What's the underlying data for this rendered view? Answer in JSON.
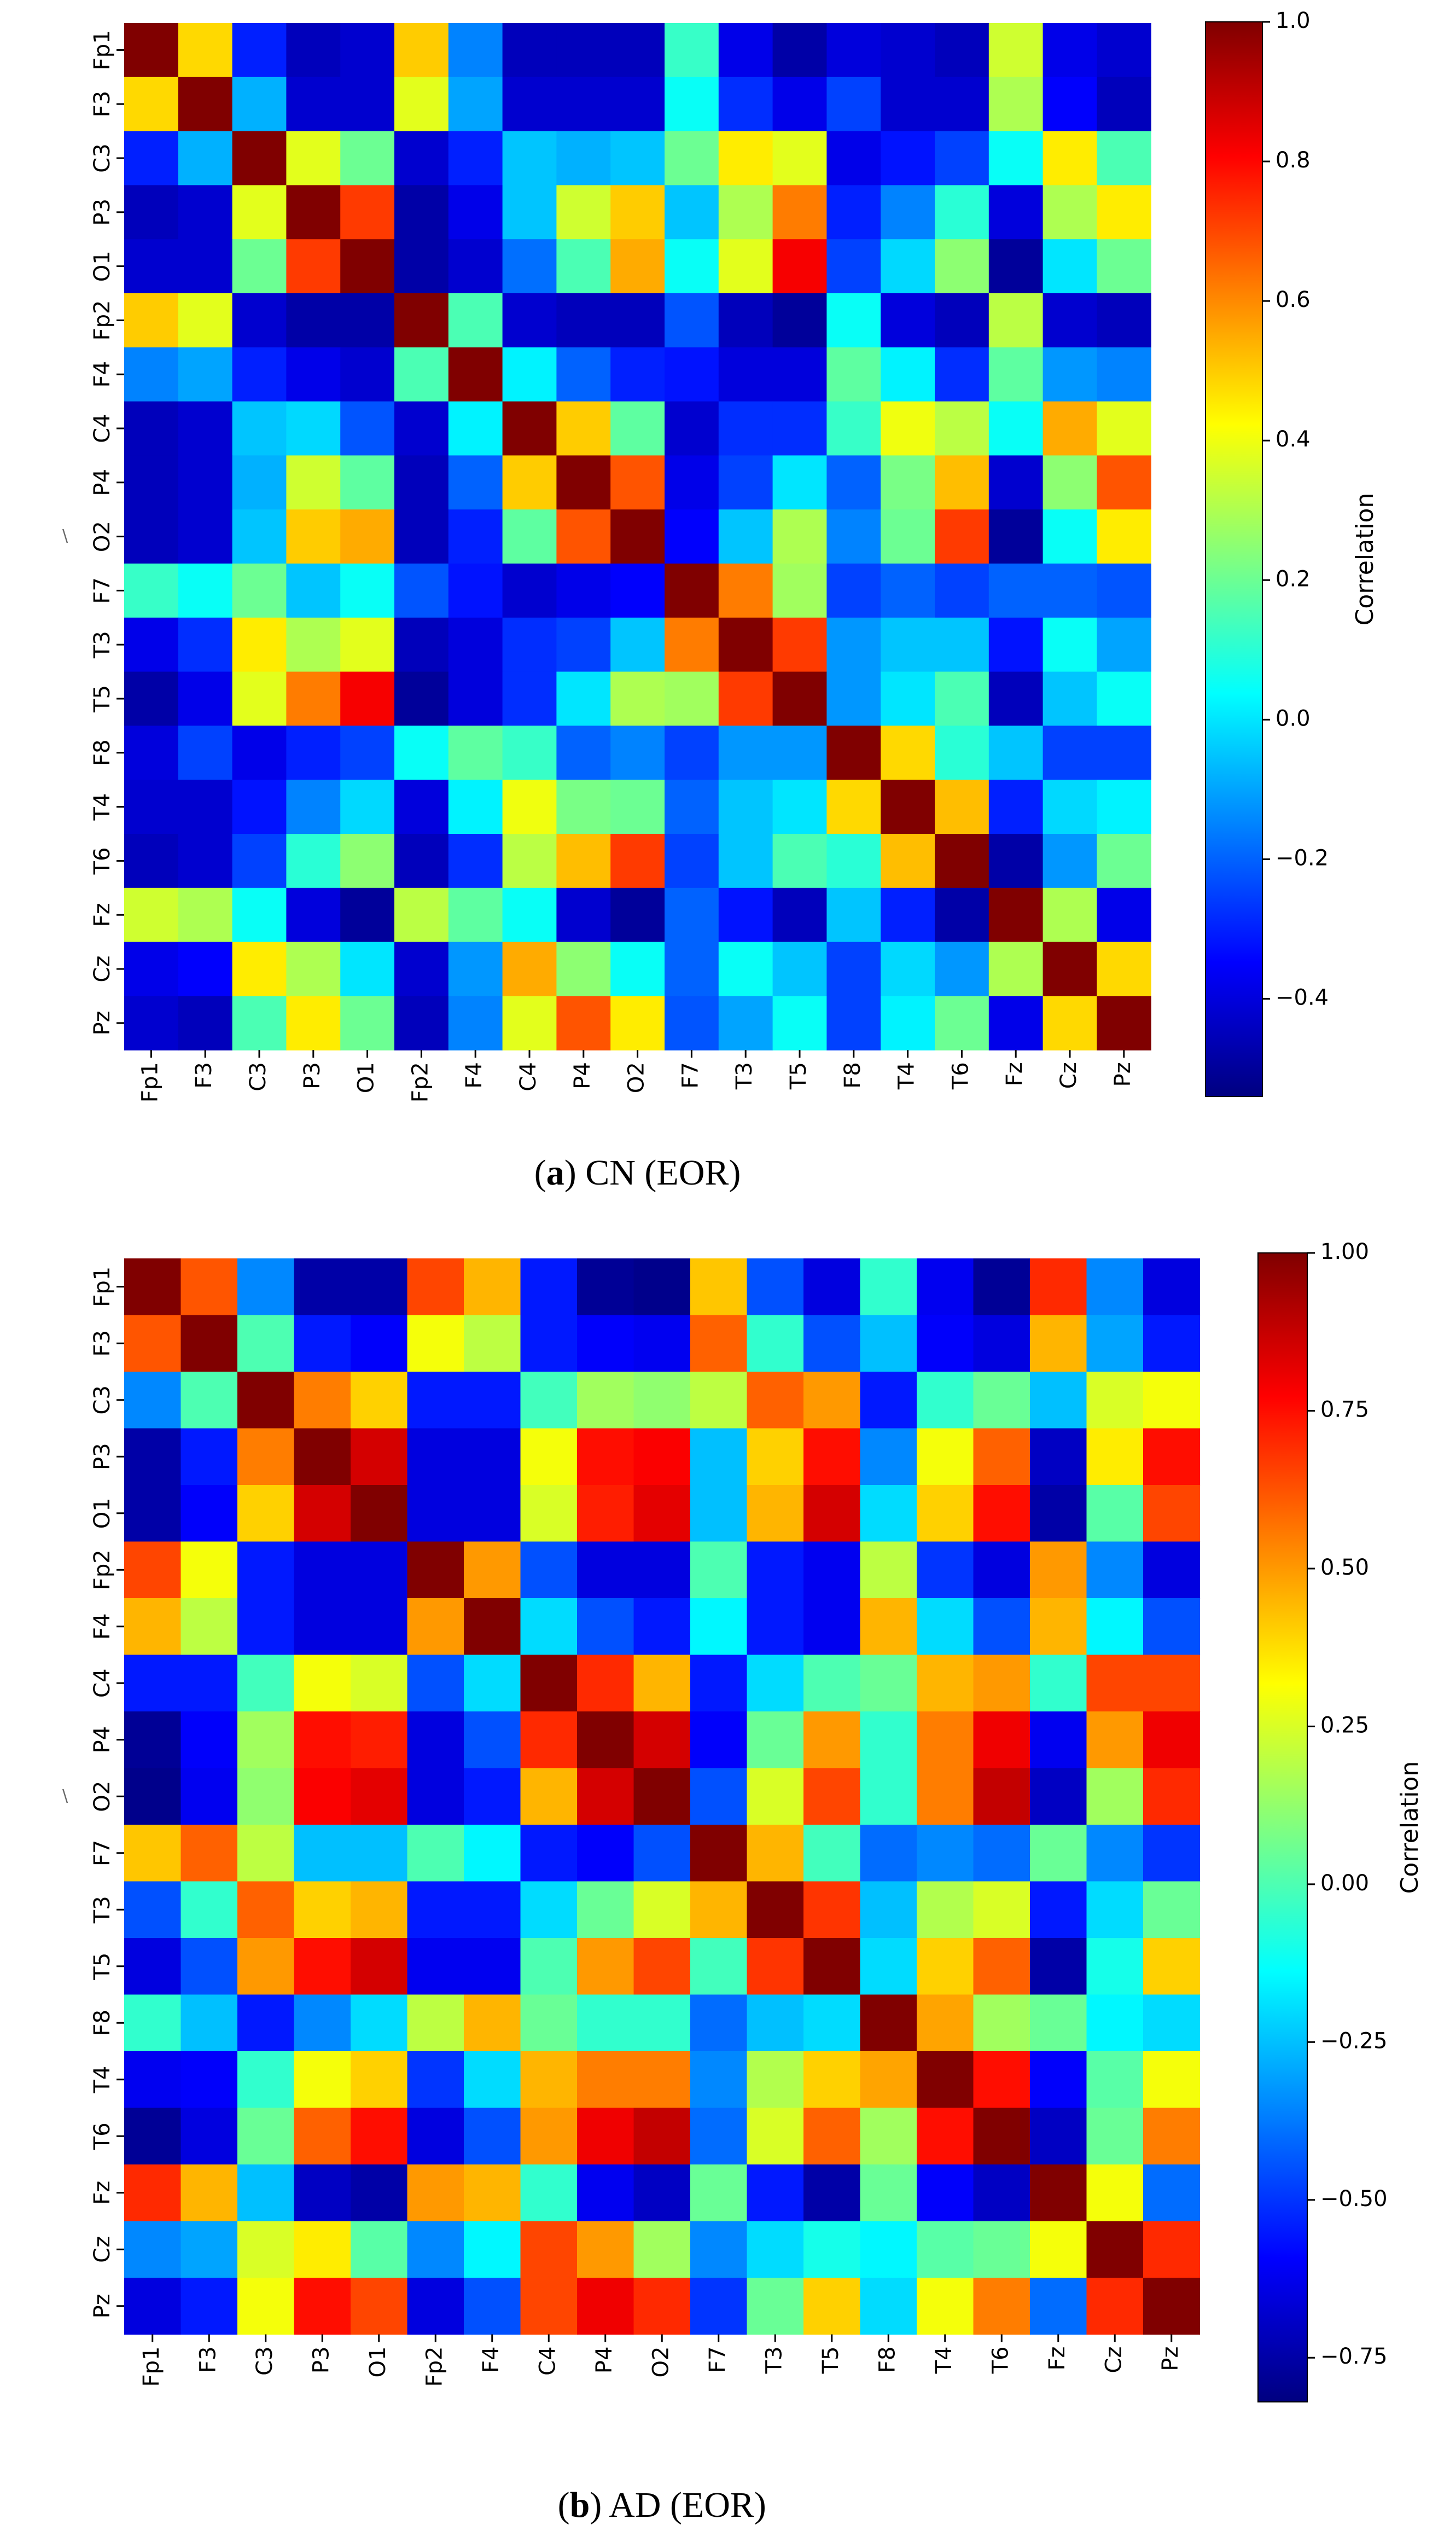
{
  "chart_data": [
    {
      "type": "heatmap",
      "panel": "a",
      "caption_letter": "a",
      "caption_text": " CN (EOR)",
      "labels": [
        "Fp1",
        "F3",
        "C3",
        "P3",
        "O1",
        "Fp2",
        "F4",
        "C4",
        "P4",
        "O2",
        "F7",
        "T3",
        "T5",
        "F8",
        "T4",
        "T6",
        "Fz",
        "Cz",
        "Pz"
      ],
      "colorbar_label": "Correlation",
      "vmin": -0.54,
      "vmax": 1.0,
      "colorbar_ticks": [
        1.0,
        0.8,
        0.6,
        0.4,
        0.2,
        0.0,
        -0.2,
        -0.4
      ],
      "colorbar_tick_labels": [
        "1.0",
        "0.8",
        "0.6",
        "0.4",
        "0.2",
        "0.0",
        "−0.2",
        "−0.4"
      ],
      "colormap": "jet",
      "matrix": [
        [
          1.0,
          0.48,
          -0.3,
          -0.45,
          -0.42,
          0.5,
          -0.15,
          -0.45,
          -0.45,
          -0.45,
          0.12,
          -0.38,
          -0.48,
          -0.4,
          -0.42,
          -0.45,
          0.35,
          -0.38,
          -0.42
        ],
        [
          0.48,
          1.0,
          -0.08,
          -0.42,
          -0.42,
          0.38,
          -0.1,
          -0.42,
          -0.42,
          -0.42,
          0.05,
          -0.28,
          -0.38,
          -0.25,
          -0.42,
          -0.42,
          0.3,
          -0.35,
          -0.45
        ],
        [
          -0.3,
          -0.08,
          1.0,
          0.38,
          0.2,
          -0.42,
          -0.3,
          -0.05,
          -0.08,
          -0.05,
          0.2,
          0.45,
          0.38,
          -0.38,
          -0.32,
          -0.25,
          0.05,
          0.45,
          0.15
        ],
        [
          -0.45,
          -0.42,
          0.38,
          1.0,
          0.72,
          -0.48,
          -0.38,
          -0.05,
          0.35,
          0.5,
          -0.05,
          0.3,
          0.62,
          -0.3,
          -0.15,
          0.1,
          -0.4,
          0.3,
          0.45
        ],
        [
          -0.42,
          -0.42,
          0.2,
          0.72,
          1.0,
          -0.48,
          -0.42,
          -0.18,
          0.15,
          0.55,
          0.05,
          0.38,
          0.82,
          -0.25,
          -0.02,
          0.25,
          -0.5,
          0.0,
          0.2
        ],
        [
          0.5,
          0.38,
          -0.42,
          -0.48,
          -0.48,
          1.0,
          0.15,
          -0.42,
          -0.45,
          -0.45,
          -0.22,
          -0.45,
          -0.5,
          0.05,
          -0.4,
          -0.45,
          0.32,
          -0.42,
          -0.45
        ],
        [
          -0.15,
          -0.1,
          -0.3,
          -0.38,
          -0.42,
          0.15,
          1.0,
          0.02,
          -0.2,
          -0.3,
          -0.32,
          -0.4,
          -0.4,
          0.18,
          0.02,
          -0.28,
          0.18,
          -0.12,
          -0.15
        ],
        [
          -0.45,
          -0.42,
          -0.05,
          -0.02,
          -0.22,
          -0.42,
          0.02,
          1.0,
          0.5,
          0.18,
          -0.42,
          -0.28,
          -0.28,
          0.12,
          0.4,
          0.32,
          0.05,
          0.55,
          0.38
        ],
        [
          -0.45,
          -0.42,
          -0.08,
          0.35,
          0.18,
          -0.45,
          -0.2,
          0.5,
          1.0,
          0.68,
          -0.38,
          -0.25,
          0.0,
          -0.2,
          0.22,
          0.52,
          -0.42,
          0.25,
          0.68
        ],
        [
          -0.45,
          -0.42,
          -0.05,
          0.5,
          0.55,
          -0.45,
          -0.3,
          0.18,
          0.68,
          1.0,
          -0.35,
          -0.05,
          0.3,
          -0.15,
          0.2,
          0.72,
          -0.5,
          0.05,
          0.45
        ],
        [
          0.12,
          0.05,
          0.2,
          -0.05,
          0.05,
          -0.22,
          -0.32,
          -0.42,
          -0.38,
          -0.35,
          1.0,
          0.62,
          0.28,
          -0.25,
          -0.2,
          -0.25,
          -0.2,
          -0.2,
          -0.22
        ],
        [
          -0.38,
          -0.28,
          0.45,
          0.3,
          0.38,
          -0.45,
          -0.4,
          -0.28,
          -0.25,
          -0.05,
          0.62,
          1.0,
          0.72,
          -0.12,
          -0.05,
          -0.05,
          -0.32,
          0.05,
          -0.1
        ],
        [
          -0.48,
          -0.38,
          0.38,
          0.62,
          0.82,
          -0.5,
          -0.4,
          -0.28,
          0.0,
          0.3,
          0.28,
          0.72,
          1.0,
          -0.12,
          0.0,
          0.15,
          -0.45,
          -0.05,
          0.05
        ],
        [
          -0.4,
          -0.25,
          -0.38,
          -0.3,
          -0.25,
          0.05,
          0.18,
          0.12,
          -0.2,
          -0.15,
          -0.25,
          -0.12,
          -0.12,
          1.0,
          0.48,
          0.1,
          -0.05,
          -0.25,
          -0.25
        ],
        [
          -0.42,
          -0.42,
          -0.32,
          -0.15,
          -0.02,
          -0.4,
          0.02,
          0.4,
          0.22,
          0.2,
          -0.2,
          -0.05,
          0.0,
          0.48,
          1.0,
          0.52,
          -0.3,
          -0.02,
          0.02
        ],
        [
          -0.45,
          -0.42,
          -0.25,
          0.1,
          0.25,
          -0.45,
          -0.28,
          0.32,
          0.52,
          0.72,
          -0.25,
          -0.05,
          0.15,
          0.1,
          0.52,
          1.0,
          -0.48,
          -0.12,
          0.2
        ],
        [
          0.35,
          0.3,
          0.05,
          -0.4,
          -0.5,
          0.32,
          0.18,
          0.05,
          -0.42,
          -0.5,
          -0.2,
          -0.32,
          -0.45,
          -0.05,
          -0.3,
          -0.48,
          1.0,
          0.3,
          -0.38
        ],
        [
          -0.38,
          -0.35,
          0.45,
          0.3,
          0.0,
          -0.42,
          -0.12,
          0.55,
          0.25,
          0.05,
          -0.2,
          0.05,
          -0.05,
          -0.25,
          -0.02,
          -0.12,
          0.3,
          1.0,
          0.48
        ],
        [
          -0.42,
          -0.45,
          0.15,
          0.45,
          0.2,
          -0.45,
          -0.15,
          0.38,
          0.68,
          0.45,
          -0.22,
          -0.1,
          0.05,
          -0.25,
          0.02,
          0.2,
          -0.38,
          0.48,
          1.0
        ]
      ]
    },
    {
      "type": "heatmap",
      "panel": "b",
      "caption_letter": "b",
      "caption_text": " AD (EOR)",
      "labels": [
        "Fp1",
        "F3",
        "C3",
        "P3",
        "O1",
        "Fp2",
        "F4",
        "C4",
        "P4",
        "O2",
        "F7",
        "T3",
        "T5",
        "F8",
        "T4",
        "T6",
        "Fz",
        "Cz",
        "Pz"
      ],
      "colorbar_label": "Correlation",
      "vmin": -0.82,
      "vmax": 1.0,
      "colorbar_ticks": [
        1.0,
        0.75,
        0.5,
        0.25,
        0.0,
        -0.25,
        -0.5,
        -0.75
      ],
      "colorbar_tick_labels": [
        "1.00",
        "0.75",
        "0.50",
        "0.25",
        "0.00",
        "−0.25",
        "−0.50",
        "−0.75"
      ],
      "colormap": "jet",
      "matrix": [
        [
          1.0,
          0.62,
          -0.35,
          -0.75,
          -0.75,
          0.65,
          0.45,
          -0.55,
          -0.78,
          -0.8,
          0.42,
          -0.45,
          -0.65,
          -0.05,
          -0.62,
          -0.78,
          0.7,
          -0.35,
          -0.65
        ],
        [
          0.62,
          1.0,
          0.0,
          -0.55,
          -0.6,
          0.3,
          0.2,
          -0.55,
          -0.6,
          -0.62,
          0.6,
          -0.05,
          -0.45,
          -0.25,
          -0.6,
          -0.65,
          0.45,
          -0.3,
          -0.55
        ],
        [
          -0.35,
          0.0,
          1.0,
          0.55,
          0.4,
          -0.55,
          -0.55,
          -0.02,
          0.15,
          0.12,
          0.2,
          0.6,
          0.5,
          -0.55,
          -0.05,
          0.05,
          -0.25,
          0.25,
          0.3
        ],
        [
          -0.75,
          -0.55,
          0.55,
          1.0,
          0.85,
          -0.65,
          -0.65,
          0.3,
          0.75,
          0.78,
          -0.25,
          0.4,
          0.75,
          -0.35,
          0.3,
          0.6,
          -0.7,
          0.35,
          0.75
        ],
        [
          -0.75,
          -0.6,
          0.4,
          0.85,
          1.0,
          -0.65,
          -0.65,
          0.25,
          0.72,
          0.82,
          -0.25,
          0.45,
          0.85,
          -0.2,
          0.4,
          0.75,
          -0.75,
          0.02,
          0.65
        ],
        [
          0.65,
          0.3,
          -0.55,
          -0.65,
          -0.65,
          1.0,
          0.5,
          -0.45,
          -0.65,
          -0.65,
          0.0,
          -0.55,
          -0.62,
          0.2,
          -0.5,
          -0.65,
          0.5,
          -0.35,
          -0.65
        ],
        [
          0.45,
          0.2,
          -0.55,
          -0.65,
          -0.65,
          0.5,
          1.0,
          -0.2,
          -0.45,
          -0.55,
          -0.15,
          -0.55,
          -0.62,
          0.45,
          -0.2,
          -0.45,
          0.45,
          -0.15,
          -0.45
        ],
        [
          -0.55,
          -0.55,
          -0.02,
          0.3,
          0.25,
          -0.45,
          -0.2,
          1.0,
          0.7,
          0.45,
          -0.55,
          -0.2,
          0.0,
          0.05,
          0.45,
          0.5,
          -0.05,
          0.65,
          0.65
        ],
        [
          -0.78,
          -0.6,
          0.15,
          0.75,
          0.72,
          -0.65,
          -0.45,
          0.7,
          1.0,
          0.85,
          -0.6,
          0.05,
          0.5,
          -0.05,
          0.55,
          0.8,
          -0.62,
          0.5,
          0.8
        ],
        [
          -0.8,
          -0.62,
          0.12,
          0.78,
          0.82,
          -0.65,
          -0.55,
          0.45,
          0.85,
          1.0,
          -0.45,
          0.25,
          0.65,
          -0.05,
          0.55,
          0.88,
          -0.7,
          0.15,
          0.7
        ],
        [
          0.42,
          0.6,
          0.2,
          -0.25,
          -0.25,
          0.0,
          -0.15,
          -0.55,
          -0.6,
          -0.45,
          1.0,
          0.45,
          -0.02,
          -0.4,
          -0.35,
          -0.4,
          0.05,
          -0.35,
          -0.5
        ],
        [
          -0.45,
          -0.05,
          0.6,
          0.4,
          0.45,
          -0.55,
          -0.55,
          -0.2,
          0.05,
          0.25,
          0.45,
          1.0,
          0.68,
          -0.25,
          0.18,
          0.25,
          -0.55,
          -0.2,
          0.05
        ],
        [
          -0.65,
          -0.45,
          0.5,
          0.75,
          0.85,
          -0.62,
          -0.62,
          0.0,
          0.5,
          0.65,
          -0.02,
          0.68,
          1.0,
          -0.2,
          0.4,
          0.6,
          -0.75,
          -0.1,
          0.4
        ],
        [
          -0.05,
          -0.25,
          -0.55,
          -0.35,
          -0.2,
          0.2,
          0.45,
          0.05,
          -0.05,
          -0.05,
          -0.4,
          -0.25,
          -0.2,
          1.0,
          0.48,
          0.15,
          0.05,
          -0.15,
          -0.2
        ],
        [
          -0.62,
          -0.6,
          -0.05,
          0.3,
          0.4,
          -0.5,
          -0.2,
          0.45,
          0.55,
          0.55,
          -0.35,
          0.18,
          0.4,
          0.48,
          1.0,
          0.75,
          -0.6,
          0.02,
          0.3
        ],
        [
          -0.78,
          -0.65,
          0.05,
          0.6,
          0.75,
          -0.65,
          -0.45,
          0.5,
          0.8,
          0.88,
          -0.4,
          0.25,
          0.6,
          0.15,
          0.75,
          1.0,
          -0.7,
          0.05,
          0.55
        ],
        [
          0.7,
          0.45,
          -0.25,
          -0.7,
          -0.75,
          0.5,
          0.45,
          -0.05,
          -0.62,
          -0.7,
          0.05,
          -0.55,
          -0.75,
          0.05,
          -0.6,
          -0.7,
          1.0,
          0.3,
          -0.4
        ],
        [
          -0.35,
          -0.3,
          0.25,
          0.35,
          0.02,
          -0.35,
          -0.15,
          0.65,
          0.5,
          0.15,
          -0.35,
          -0.2,
          -0.1,
          -0.15,
          0.02,
          0.05,
          0.3,
          1.0,
          0.7
        ],
        [
          -0.65,
          -0.55,
          0.3,
          0.75,
          0.65,
          -0.65,
          -0.45,
          0.65,
          0.8,
          0.7,
          -0.5,
          0.05,
          0.4,
          -0.2,
          0.3,
          0.55,
          -0.4,
          0.7,
          1.0
        ]
      ]
    }
  ],
  "stray_mark": "\\"
}
